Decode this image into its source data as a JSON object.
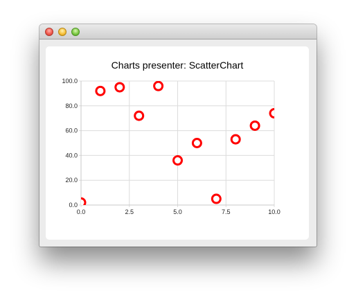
{
  "window": {
    "title": ""
  },
  "chart_data": {
    "type": "scatter",
    "title": "Charts presenter: ScatterChart",
    "xlabel": "",
    "ylabel": "",
    "xlim": [
      0,
      10
    ],
    "ylim": [
      0,
      100
    ],
    "x_ticks": [
      "0.0",
      "2.5",
      "5.0",
      "7.5",
      "10.0"
    ],
    "y_ticks": [
      "0.0",
      "20.0",
      "40.0",
      "60.0",
      "80.0",
      "100.0"
    ],
    "grid": true,
    "legend": "none",
    "series": [
      {
        "color": "#ff0000",
        "points": [
          {
            "x": 0,
            "y": 2
          },
          {
            "x": 1,
            "y": 92
          },
          {
            "x": 2,
            "y": 95
          },
          {
            "x": 3,
            "y": 72
          },
          {
            "x": 4,
            "y": 96
          },
          {
            "x": 5,
            "y": 36
          },
          {
            "x": 6,
            "y": 50
          },
          {
            "x": 7,
            "y": 5
          },
          {
            "x": 8,
            "y": 53
          },
          {
            "x": 9,
            "y": 64
          },
          {
            "x": 10,
            "y": 74
          }
        ]
      }
    ]
  }
}
